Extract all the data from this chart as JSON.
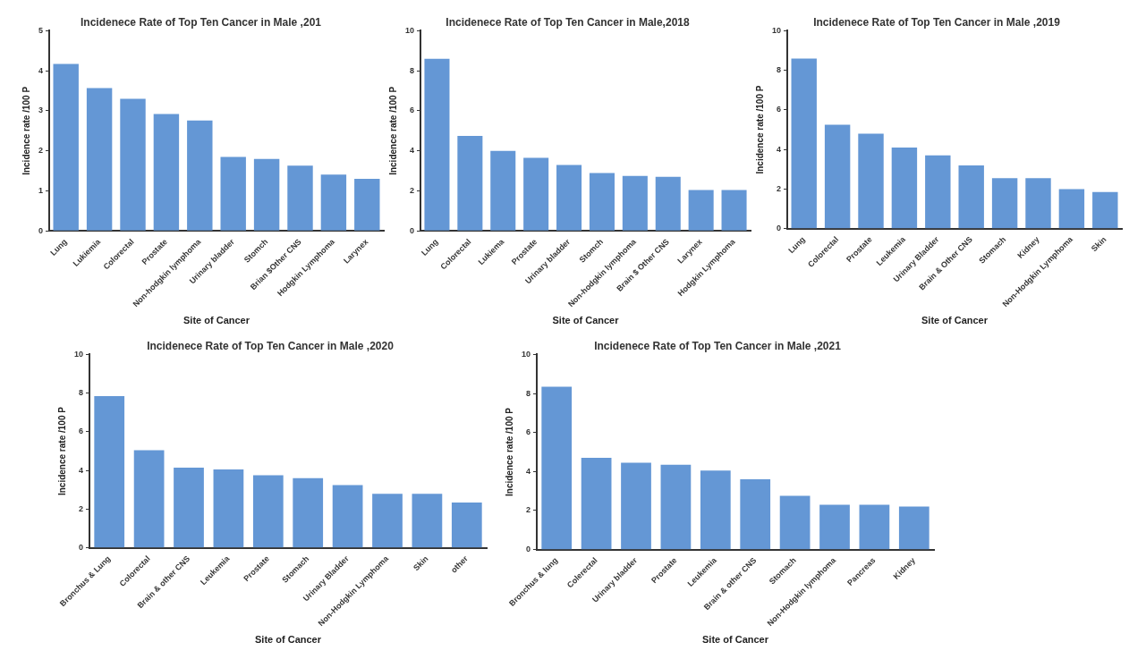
{
  "chart_data": [
    {
      "type": "bar",
      "title": "Incidenece Rate of Top Ten Cancer in Male ,201",
      "xlabel": "Site of Cancer",
      "ylabel": "Incidence rate /100 P",
      "categories": [
        "Lung",
        "Lukiemia",
        "Colorectal",
        "Prostate",
        "Non-hodgkin lymphoma",
        "Urinary bladder",
        "Stomch",
        "Brian $Other CNS",
        "Hodgkin Lymphoma",
        "Larynex"
      ],
      "values": [
        4.17,
        3.57,
        3.3,
        2.92,
        2.76,
        1.85,
        1.8,
        1.63,
        1.41,
        1.3
      ],
      "color": "#6497d5",
      "ylim": [
        0,
        5
      ],
      "yticks": [
        0,
        1,
        2,
        3,
        4,
        5
      ]
    },
    {
      "type": "bar",
      "title": "Incidenece Rate of Top Ten Cancer in Male,2018",
      "xlabel": "Site of Cancer",
      "ylabel": "Incidence rate /100 P",
      "categories": [
        "Lung",
        "Colorectal",
        "Lukiema",
        "Prostate",
        "Urinary bladder",
        "Stomch",
        "Non-hodgkin lymphoma",
        "Brain $ Other CNS",
        "Larynex",
        "Hodgkin Lymphoma"
      ],
      "values": [
        8.6,
        4.75,
        4.0,
        3.65,
        3.3,
        2.9,
        2.75,
        2.7,
        2.05,
        2.05
      ],
      "color": "#6497d5",
      "ylim": [
        0,
        10
      ],
      "yticks": [
        0,
        2,
        4,
        6,
        8,
        10
      ]
    },
    {
      "type": "bar",
      "title": "Incidenece Rate of Top Ten Cancer in Male ,2019",
      "xlabel": "Site of Cancer",
      "ylabel": "Incidence rate /100 P",
      "categories": [
        "Lung",
        "Colorectal",
        "Prostate",
        "Leukemia",
        "Urinary Bladder",
        "Brain & Other CNS",
        "Stomach",
        "Kidney",
        "Non-Hodgkin Lymphoma",
        "Skin"
      ],
      "values": [
        8.6,
        5.25,
        4.8,
        4.1,
        3.7,
        3.2,
        2.55,
        2.55,
        2.0,
        1.85
      ],
      "color": "#6497d5",
      "ylim": [
        0,
        10
      ],
      "yticks": [
        0,
        2,
        4,
        6,
        8,
        10
      ]
    },
    {
      "type": "bar",
      "title": "Incidenece Rate of Top Ten Cancer in Male ,2020",
      "xlabel": "Site of Cancer",
      "ylabel": "Incidence rate /100 P",
      "categories": [
        "Bronchus & Lung",
        "Colorectal",
        "Brain & other CNS",
        "Leukemia",
        "Prostate",
        "Stomach",
        "Urinary Bladder",
        "Non-Hodgkin Lymphoma",
        "Skin",
        "other"
      ],
      "values": [
        7.85,
        5.05,
        4.15,
        4.05,
        3.75,
        3.6,
        3.25,
        2.8,
        2.8,
        2.35
      ],
      "color": "#6497d5",
      "ylim": [
        0,
        10
      ],
      "yticks": [
        0,
        2,
        4,
        6,
        8,
        10
      ]
    },
    {
      "type": "bar",
      "title": "Incidenece Rate of Top Ten Cancer in Male ,2021",
      "xlabel": "Site of Cancer",
      "ylabel": "Incidence rate /100 P",
      "categories": [
        "Bronchus & lung",
        "Colerectal",
        "Urinary bladder",
        "Prostate",
        "Leukemia",
        "Brain & other CNS",
        "Stomach",
        "Non-Hodgkin lymphoma",
        "Pancreas",
        "Kidney"
      ],
      "values": [
        8.35,
        4.7,
        4.45,
        4.35,
        4.05,
        3.6,
        2.75,
        2.3,
        2.3,
        2.2
      ],
      "color": "#6497d5",
      "ylim": [
        0,
        10
      ],
      "yticks": [
        0,
        2,
        4,
        6,
        8,
        10
      ]
    }
  ]
}
